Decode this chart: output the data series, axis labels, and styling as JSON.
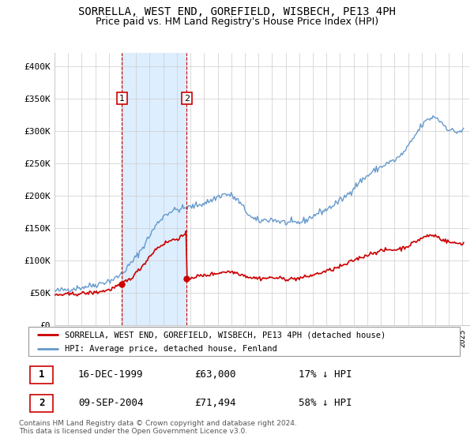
{
  "title": "SORRELLA, WEST END, GOREFIELD, WISBECH, PE13 4PH",
  "subtitle": "Price paid vs. HM Land Registry's House Price Index (HPI)",
  "ylabel_ticks": [
    "£0",
    "£50K",
    "£100K",
    "£150K",
    "£200K",
    "£250K",
    "£300K",
    "£350K",
    "£400K"
  ],
  "ytick_values": [
    0,
    50000,
    100000,
    150000,
    200000,
    250000,
    300000,
    350000,
    400000
  ],
  "ylim": [
    0,
    420000
  ],
  "xlim_start": 1995.0,
  "xlim_end": 2025.5,
  "line1_color": "#cc0000",
  "line2_color": "#6699cc",
  "shade_color": "#ddeeff",
  "vline_color": "#cc0000",
  "sale1_x": 1999.96,
  "sale1_y": 63000,
  "sale1_label": "1",
  "sale2_x": 2004.72,
  "sale2_y": 71494,
  "sale2_label": "2",
  "legend_line1": "SORRELLA, WEST END, GOREFIELD, WISBECH, PE13 4PH (detached house)",
  "legend_line2": "HPI: Average price, detached house, Fenland",
  "table_row1": [
    "1",
    "16-DEC-1999",
    "£63,000",
    "17% ↓ HPI"
  ],
  "table_row2": [
    "2",
    "09-SEP-2004",
    "£71,494",
    "58% ↓ HPI"
  ],
  "footnote": "Contains HM Land Registry data © Crown copyright and database right 2024.\nThis data is licensed under the Open Government Licence v3.0.",
  "background_color": "#ffffff",
  "grid_color": "#cccccc",
  "title_fontsize": 10,
  "subtitle_fontsize": 9,
  "tick_fontsize": 8
}
